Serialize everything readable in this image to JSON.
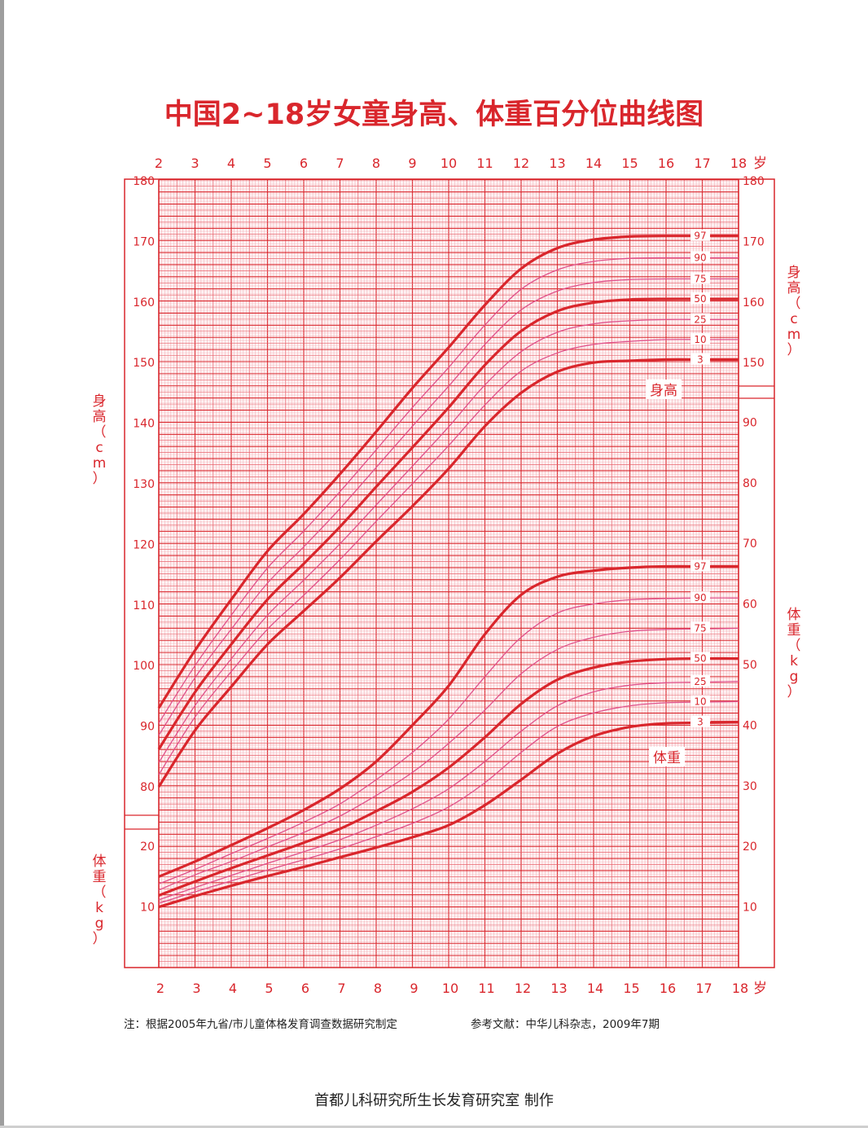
{
  "page": {
    "title": "中国2~18岁女童身高、体重百分位曲线图",
    "note_left": "注：根据2005年九省/市儿童体格发育调查数据研究制定",
    "note_right": "参考文献：中华儿科杂志，2009年7期",
    "footer": "首都儿科研究所生长发育研究室  制作"
  },
  "colors": {
    "accent": "#d9262c",
    "thin_curve": "#e0508a",
    "grid": "#e8606a",
    "grid_minor": "#f3a6ad"
  },
  "chart_data": {
    "type": "line",
    "x": [
      2,
      3,
      4,
      5,
      6,
      7,
      8,
      9,
      10,
      11,
      12,
      13,
      14,
      15,
      16,
      17,
      18
    ],
    "x_unit_label": "岁",
    "xlim": [
      2,
      18
    ],
    "height": {
      "label": "身高",
      "axis_label": "身高（cm）",
      "unit": "cm",
      "ylim": [
        80,
        180
      ],
      "ticks": [
        80,
        90,
        100,
        110,
        120,
        130,
        140,
        150,
        160,
        170,
        180
      ],
      "right_ticks": [
        150,
        160,
        170,
        180
      ],
      "series": [
        {
          "name": "97",
          "values": [
            93.0,
            102.5,
            110.9,
            118.9,
            125.0,
            131.6,
            138.6,
            145.8,
            152.5,
            159.5,
            165.5,
            168.9,
            170.3,
            170.8,
            170.9,
            170.9,
            170.9
          ]
        },
        {
          "name": "90",
          "values": [
            90.5,
            100.0,
            108.3,
            116.1,
            122.2,
            128.7,
            135.6,
            142.6,
            149.2,
            156.2,
            162.1,
            165.3,
            166.7,
            167.2,
            167.3,
            167.3,
            167.3
          ]
        },
        {
          "name": "75",
          "values": [
            88.5,
            98.0,
            106.0,
            113.6,
            119.6,
            125.9,
            132.7,
            139.5,
            146.1,
            153.0,
            158.7,
            161.8,
            163.2,
            163.7,
            163.8,
            163.8,
            163.8
          ]
        },
        {
          "name": "50",
          "values": [
            86.2,
            95.6,
            103.5,
            110.9,
            116.8,
            122.9,
            129.5,
            136.0,
            142.6,
            149.6,
            155.2,
            158.5,
            159.9,
            160.4,
            160.5,
            160.5,
            160.5
          ]
        },
        {
          "name": "25",
          "values": [
            84.0,
            93.4,
            101.1,
            108.3,
            114.1,
            120.1,
            126.5,
            132.9,
            139.4,
            146.3,
            151.8,
            155.0,
            156.4,
            156.9,
            157.1,
            157.1,
            157.1
          ]
        },
        {
          "name": "10",
          "values": [
            82.0,
            91.5,
            99.0,
            106.0,
            111.6,
            117.5,
            123.8,
            130.0,
            136.3,
            143.0,
            148.6,
            151.6,
            153.0,
            153.5,
            153.8,
            153.8,
            153.8
          ]
        },
        {
          "name": "3",
          "values": [
            80.0,
            89.3,
            96.5,
            103.5,
            109.0,
            114.5,
            120.5,
            126.3,
            132.5,
            139.5,
            145.0,
            148.5,
            150.0,
            150.3,
            150.5,
            150.5,
            150.5
          ]
        }
      ]
    },
    "weight": {
      "label": "体重",
      "axis_label": "体重（kg）",
      "unit": "kg",
      "ylim": [
        0,
        95
      ],
      "left_ticks": [
        10,
        20
      ],
      "right_ticks": [
        10,
        20,
        30,
        40,
        50,
        60,
        70,
        80,
        90
      ],
      "series": [
        {
          "name": "97",
          "values": [
            15.0,
            17.5,
            20.2,
            23.0,
            26.0,
            29.5,
            34.0,
            40.0,
            46.5,
            55.0,
            61.5,
            64.5,
            65.5,
            66.0,
            66.2,
            66.2,
            66.2
          ]
        },
        {
          "name": "90",
          "values": [
            13.8,
            16.2,
            18.8,
            21.3,
            24.0,
            27.0,
            31.0,
            35.5,
            41.0,
            48.0,
            54.5,
            58.5,
            60.0,
            60.7,
            60.9,
            61.0,
            61.0
          ]
        },
        {
          "name": "75",
          "values": [
            12.8,
            15.3,
            17.5,
            19.9,
            22.3,
            25.0,
            28.4,
            32.2,
            37.0,
            42.5,
            48.5,
            52.5,
            54.5,
            55.5,
            55.8,
            55.9,
            56.0
          ]
        },
        {
          "name": "50",
          "values": [
            11.9,
            14.2,
            16.4,
            18.5,
            20.6,
            22.9,
            25.8,
            29.0,
            33.0,
            38.0,
            43.5,
            47.5,
            49.5,
            50.5,
            50.9,
            51.0,
            51.0
          ]
        },
        {
          "name": "25",
          "values": [
            11.2,
            13.2,
            15.2,
            17.2,
            19.1,
            21.1,
            23.5,
            26.2,
            29.5,
            34.0,
            39.0,
            43.2,
            45.5,
            46.6,
            47.0,
            47.1,
            47.2
          ]
        },
        {
          "name": "10",
          "values": [
            10.6,
            12.5,
            14.3,
            16.1,
            17.8,
            19.6,
            21.6,
            23.8,
            26.5,
            30.5,
            35.5,
            39.8,
            42.0,
            43.2,
            43.7,
            43.8,
            43.9
          ]
        },
        {
          "name": "3",
          "values": [
            10.0,
            11.8,
            13.5,
            15.1,
            16.6,
            18.2,
            19.8,
            21.5,
            23.5,
            26.8,
            31.0,
            35.3,
            38.2,
            39.7,
            40.3,
            40.4,
            40.5
          ]
        }
      ]
    }
  }
}
